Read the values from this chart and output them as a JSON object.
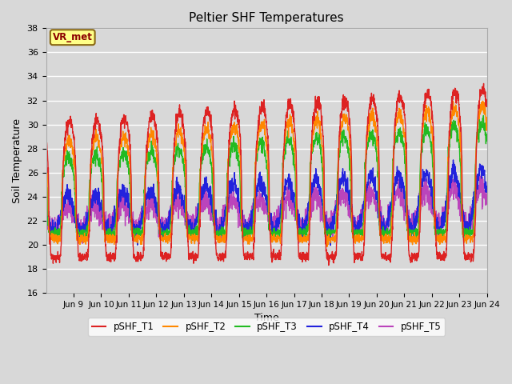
{
  "title": "Peltier SHF Temperatures",
  "ylabel": "Soil Temperature",
  "xlabel": "Time",
  "ylim": [
    16,
    38
  ],
  "xlim_days": [
    8.0,
    24.0
  ],
  "bg_color": "#d8d8d8",
  "plot_bg_color": "#d8d8d8",
  "grid_color": "#ffffff",
  "annotation_text": "VR_met",
  "annotation_bg": "#ffff88",
  "annotation_edge": "#8B6914",
  "annotation_text_color": "#8B0000",
  "series": [
    {
      "name": "pSHF_T1",
      "color": "#dd2222",
      "lw": 1.0
    },
    {
      "name": "pSHF_T2",
      "color": "#ff8800",
      "lw": 1.0
    },
    {
      "name": "pSHF_T3",
      "color": "#22bb22",
      "lw": 1.0
    },
    {
      "name": "pSHF_T4",
      "color": "#2222dd",
      "lw": 1.0
    },
    {
      "name": "pSHF_T5",
      "color": "#bb44bb",
      "lw": 1.0
    }
  ],
  "xtick_labels": [
    "Jun 9",
    "Jun 10",
    "Jun 11",
    "Jun 12",
    "Jun 13",
    "Jun 14",
    "Jun 15",
    "Jun 16",
    "Jun 17",
    "Jun 18",
    "Jun 19",
    "Jun 20",
    "Jun 21",
    "Jun 22",
    "Jun 23",
    "Jun 24"
  ],
  "xtick_positions": [
    9,
    10,
    11,
    12,
    13,
    14,
    15,
    16,
    17,
    18,
    19,
    20,
    21,
    22,
    23,
    24
  ]
}
